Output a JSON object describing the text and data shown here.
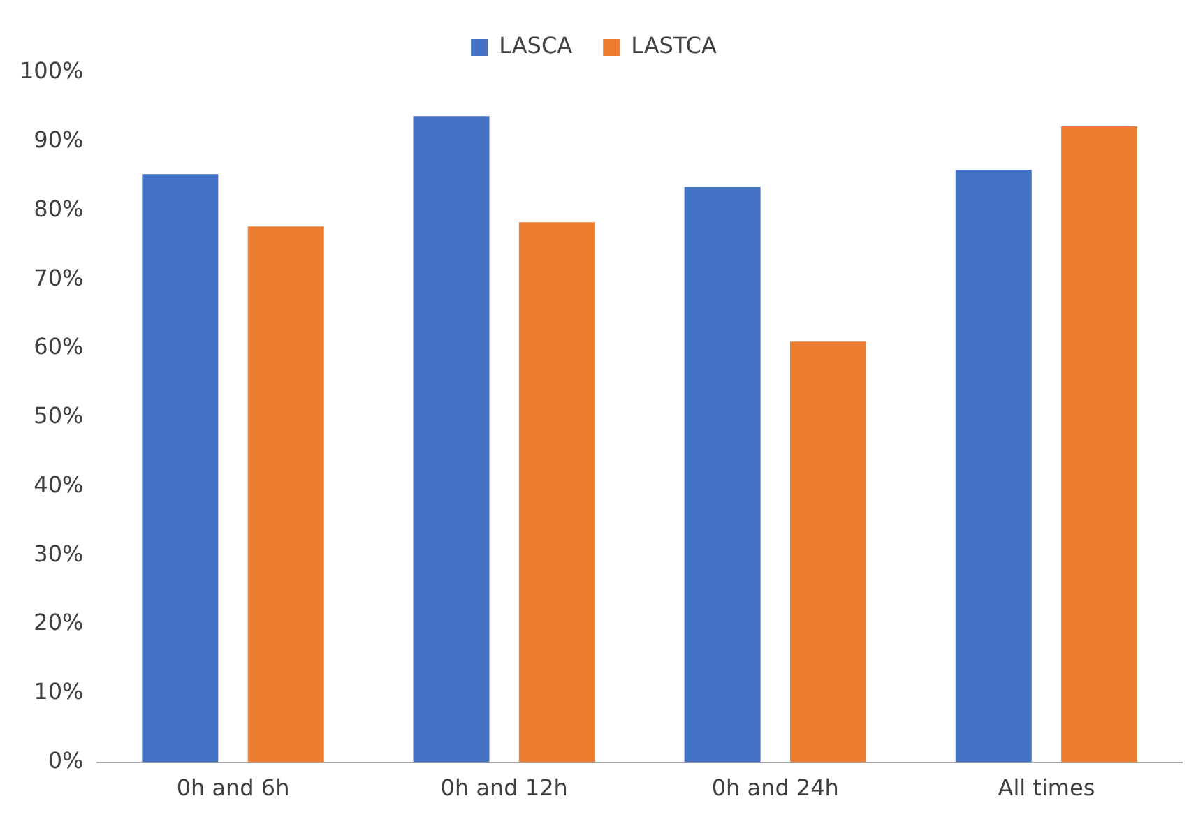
{
  "chart_data": {
    "type": "bar",
    "categories": [
      "0h and 6h",
      "0h and 12h",
      "0h and 24h",
      "All times"
    ],
    "series": [
      {
        "name": "LASCA",
        "color": "#4472c4",
        "values": [
          85.3,
          93.7,
          83.4,
          85.9
        ]
      },
      {
        "name": "LASTCA",
        "color": "#ed7d31",
        "values": [
          77.7,
          78.3,
          61,
          92.2
        ]
      }
    ],
    "ylim": [
      0,
      100
    ],
    "yticks": [
      {
        "value": 0,
        "label": "0%"
      },
      {
        "value": 10,
        "label": "10%"
      },
      {
        "value": 20,
        "label": "20%"
      },
      {
        "value": 30,
        "label": "30%"
      },
      {
        "value": 40,
        "label": "40%"
      },
      {
        "value": 50,
        "label": "50%"
      },
      {
        "value": 60,
        "label": "60%"
      },
      {
        "value": 70,
        "label": "70%"
      },
      {
        "value": 80,
        "label": "80%"
      },
      {
        "value": 90,
        "label": "90%"
      },
      {
        "value": 100,
        "label": "100%"
      }
    ],
    "grid": false,
    "legend": "top"
  }
}
